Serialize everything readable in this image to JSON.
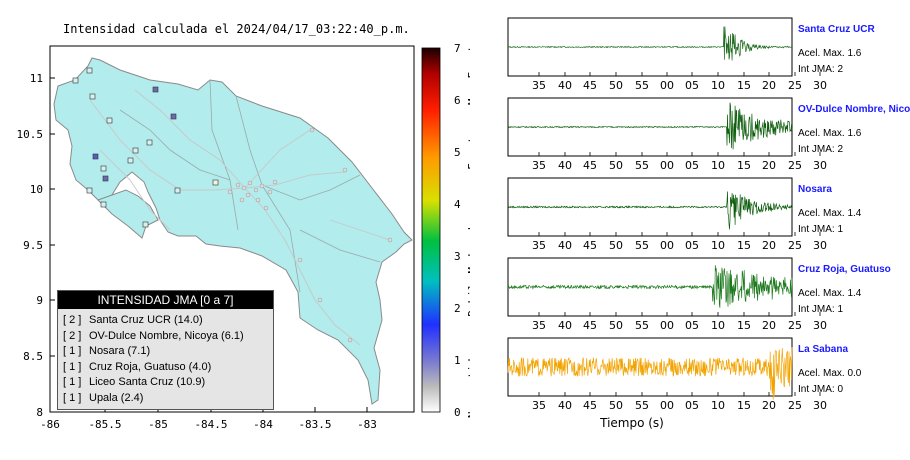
{
  "map": {
    "title": "Intensidad calculada el 2024/04/17_03:22:40_p.m.",
    "x_ticks": [
      "-86",
      "-85.5",
      "-85",
      "-84.5",
      "-84",
      "-83.5",
      "-83"
    ],
    "y_ticks": [
      "11",
      "10.5",
      "10",
      "9.5",
      "9",
      "8.5",
      "8"
    ],
    "colorbar": {
      "ticks": [
        "7",
        "6",
        "5",
        "4",
        "3",
        "2",
        "1",
        "0"
      ],
      "labels": [
        "Muy Fuerte",
        "Fuerte",
        "Moderado",
        "Debil",
        "No sentido"
      ]
    },
    "legend": {
      "header": "INTENSIDAD JMA [0 a 7]",
      "rows": [
        {
          "level": "[ 2 ]",
          "name": "Santa Cruz UCR (14.0)"
        },
        {
          "level": "[ 2 ]",
          "name": "OV-Dulce Nombre, Nicoya (6.1)"
        },
        {
          "level": "[ 1 ]",
          "name": "Nosara (7.1)"
        },
        {
          "level": "[ 1 ]",
          "name": "Cruz Roja, Guatuso (4.0)"
        },
        {
          "level": "[ 1 ]",
          "name": "Liceo Santa Cruz (10.9)"
        },
        {
          "level": "[ 1 ]",
          "name": "Upala (2.4)"
        }
      ]
    }
  },
  "traces": {
    "xlabel": "Tiempo (s)",
    "x_ticks": [
      "35",
      "40",
      "45",
      "50",
      "55",
      "00",
      "05",
      "10",
      "15",
      "20",
      "25",
      "30"
    ],
    "panels": [
      {
        "station": "Santa Cruz UCR",
        "acel": "Acel. Max. 1.6",
        "int": "Int JMA: 2",
        "color": "#1f6b1f",
        "onset": 0.76,
        "amp": 1.0,
        "noise": 0.02,
        "decay": 0.05
      },
      {
        "station": "OV-Dulce Nombre, Nicoya",
        "acel": "Acel. Max. 1.6",
        "int": "Int JMA: 2",
        "color": "#0d5e0d",
        "onset": 0.77,
        "amp": 1.0,
        "noise": 0.02,
        "decay": 0.15
      },
      {
        "station": "Nosara",
        "acel": "Acel. Max. 1.4",
        "int": "Int JMA: 1",
        "color": "#0d5e0d",
        "onset": 0.77,
        "amp": 1.0,
        "noise": 0.03,
        "decay": 0.08
      },
      {
        "station": "Cruz Roja, Guatuso",
        "acel": "Acel. Max. 1.4",
        "int": "Int JMA: 1",
        "color": "#1e7a1e",
        "onset": 0.72,
        "amp": 0.9,
        "noise": 0.06,
        "decay": 0.3
      },
      {
        "station": "La Sabana",
        "acel": "Acel. Max. 0.0",
        "int": "Int JMA: 0",
        "color": "#f2a300",
        "onset": 0.92,
        "amp": 1.0,
        "noise": 0.35,
        "decay": 0.2
      }
    ]
  }
}
